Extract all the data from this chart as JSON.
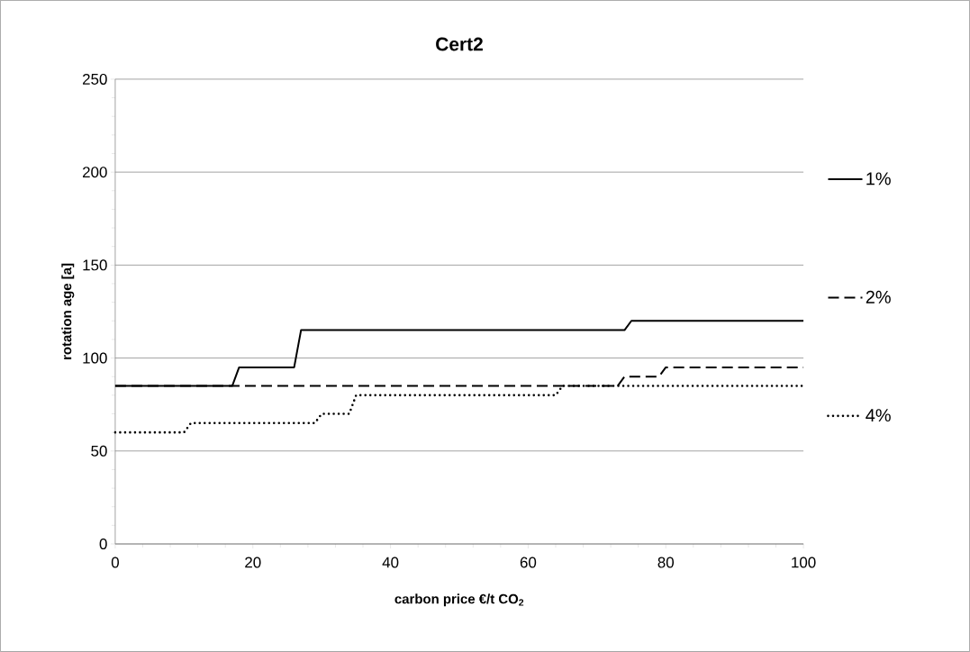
{
  "chart_data": {
    "type": "line",
    "title": "Cert2",
    "xlabel": "carbon price €/t CO$_{2}$",
    "ylabel": "rotation age [a]",
    "series": [
      {
        "name": "1%",
        "color": "#000000",
        "line_style": "solid",
        "x": [
          0,
          17,
          18,
          26,
          27,
          74,
          75,
          100
        ],
        "values": [
          85,
          85,
          95,
          95,
          115,
          115,
          120,
          120
        ]
      },
      {
        "name": "2%",
        "color": "#000000",
        "line_style": "dashed",
        "x": [
          0,
          73,
          74,
          79,
          80,
          100
        ],
        "values": [
          85,
          85,
          90,
          90,
          95,
          95
        ]
      },
      {
        "name": "4%",
        "color": "#000000",
        "line_style": "dotted",
        "x": [
          0,
          10,
          11,
          29,
          30,
          34,
          35,
          64,
          65,
          100
        ],
        "values": [
          60,
          60,
          65,
          65,
          70,
          70,
          80,
          80,
          85,
          85
        ]
      }
    ],
    "xlim": [
      0,
      100
    ],
    "ylim": [
      0,
      250
    ],
    "xticks": [
      0,
      20,
      40,
      60,
      80,
      100
    ],
    "yticks": [
      0,
      50,
      100,
      150,
      200,
      250
    ],
    "grid": "y",
    "legend": "right",
    "marker": "none"
  }
}
